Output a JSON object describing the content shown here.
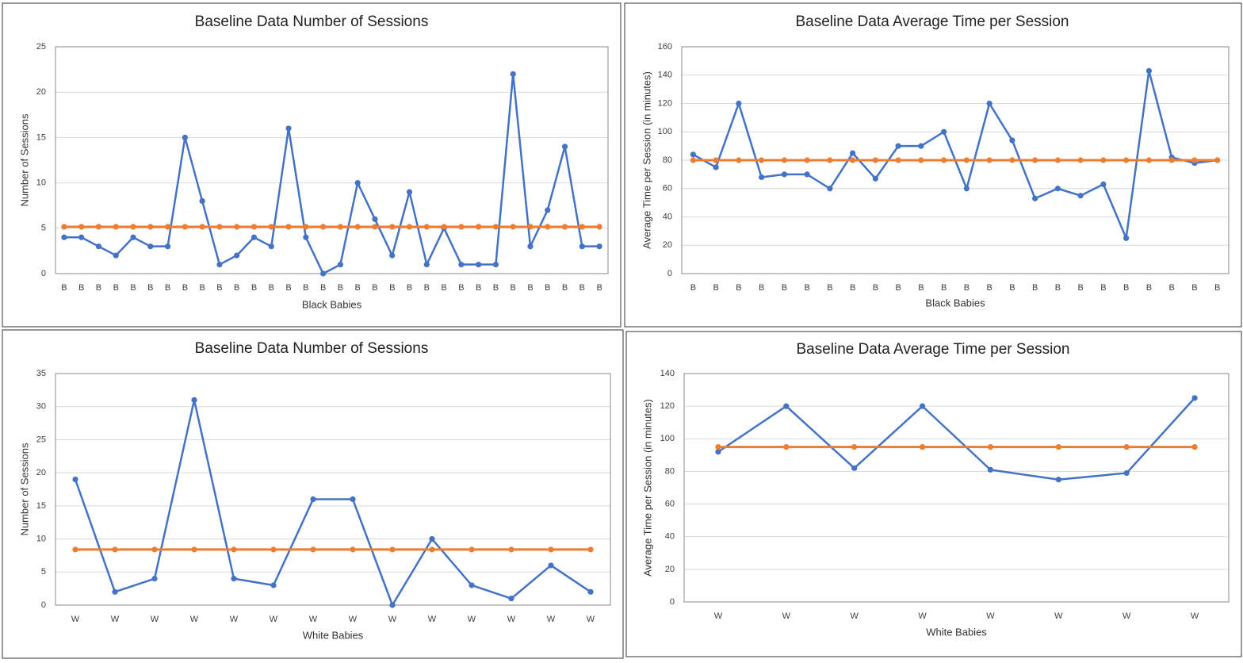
{
  "chart_data": [
    {
      "type": "line",
      "title": "Baseline Data Number of Sessions",
      "x_label": "Black Babies",
      "y_label": "Number of Sessions",
      "categories": [
        "B",
        "B",
        "B",
        "B",
        "B",
        "B",
        "B",
        "B",
        "B",
        "B",
        "B",
        "B",
        "B",
        "B",
        "B",
        "B",
        "B",
        "B",
        "B",
        "B",
        "B",
        "B",
        "B",
        "B",
        "B",
        "B",
        "B",
        "B",
        "B",
        "B",
        "B",
        "B"
      ],
      "series": [
        {
          "color": "#4472c4",
          "values": [
            4,
            4,
            3,
            2,
            4,
            3,
            3,
            15,
            8,
            1,
            2,
            4,
            3,
            16,
            4,
            0,
            1,
            10,
            6,
            2,
            9,
            1,
            5,
            1,
            1,
            1,
            22,
            3,
            7,
            14,
            3,
            3
          ]
        },
        {
          "color": "#ed7d31",
          "values": [
            5.16,
            5.16,
            5.16,
            5.16,
            5.16,
            5.16,
            5.16,
            5.16,
            5.16,
            5.16,
            5.16,
            5.16,
            5.16,
            5.16,
            5.16,
            5.16,
            5.16,
            5.16,
            5.16,
            5.16,
            5.16,
            5.16,
            5.16,
            5.16,
            5.16,
            5.16,
            5.16,
            5.16,
            5.16,
            5.16,
            5.16,
            5.16
          ]
        }
      ],
      "ylim": [
        0,
        25
      ],
      "yticks": [
        0,
        5,
        10,
        15,
        20,
        25
      ],
      "grid": true
    },
    {
      "type": "line",
      "title": "Baseline Data Average Time per Session",
      "x_label": "Black Babies",
      "y_label": "Average Time per Session (in minutes)",
      "categories": [
        "B",
        "B",
        "B",
        "B",
        "B",
        "B",
        "B",
        "B",
        "B",
        "B",
        "B",
        "B",
        "B",
        "B",
        "B",
        "B",
        "B",
        "B",
        "B",
        "B",
        "B",
        "B",
        "B",
        "B"
      ],
      "series": [
        {
          "color": "#4472c4",
          "values": [
            84,
            75,
            120,
            68,
            70,
            70,
            60,
            85,
            67,
            90,
            90,
            100,
            60,
            120,
            94,
            53,
            60,
            55,
            63,
            25,
            143,
            82,
            78,
            80
          ]
        },
        {
          "color": "#ed7d31",
          "values": [
            80,
            80,
            80,
            80,
            80,
            80,
            80,
            80,
            80,
            80,
            80,
            80,
            80,
            80,
            80,
            80,
            80,
            80,
            80,
            80,
            80,
            80,
            80,
            80
          ]
        }
      ],
      "ylim": [
        0,
        160
      ],
      "yticks": [
        0,
        20,
        40,
        60,
        80,
        100,
        120,
        140,
        160
      ],
      "grid": true
    },
    {
      "type": "line",
      "title": "Baseline Data Number of Sessions",
      "x_label": "White Babies",
      "y_label": "Number of Sessions",
      "categories": [
        "W",
        "W",
        "W",
        "W",
        "W",
        "W",
        "W",
        "W",
        "W",
        "W",
        "W",
        "W",
        "W",
        "W"
      ],
      "series": [
        {
          "color": "#4472c4",
          "values": [
            19,
            2,
            4,
            31,
            4,
            3,
            16,
            16,
            0,
            10,
            3,
            1,
            6,
            2
          ]
        },
        {
          "color": "#ed7d31",
          "values": [
            8.4,
            8.4,
            8.4,
            8.4,
            8.4,
            8.4,
            8.4,
            8.4,
            8.4,
            8.4,
            8.4,
            8.4,
            8.4,
            8.4
          ]
        }
      ],
      "ylim": [
        0,
        35
      ],
      "yticks": [
        0,
        5,
        10,
        15,
        20,
        25,
        30,
        35
      ],
      "grid": true
    },
    {
      "type": "line",
      "title": "Baseline Data Average Time per Session",
      "x_label": "White Babies",
      "y_label": "Average Time per Session (in minutes)",
      "categories": [
        "W",
        "W",
        "W",
        "W",
        "W",
        "W",
        "W",
        "W"
      ],
      "series": [
        {
          "color": "#4472c4",
          "values": [
            92,
            120,
            82,
            120,
            81,
            75,
            79,
            125
          ]
        },
        {
          "color": "#ed7d31",
          "values": [
            95,
            95,
            95,
            95,
            95,
            95,
            95,
            95
          ]
        }
      ],
      "ylim": [
        0,
        140
      ],
      "yticks": [
        0,
        20,
        40,
        60,
        80,
        100,
        120,
        140
      ],
      "grid": true
    }
  ]
}
